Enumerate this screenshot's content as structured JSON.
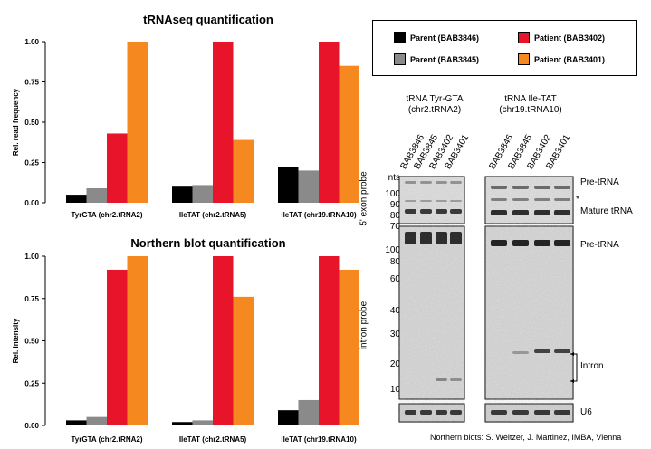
{
  "colors": {
    "parent_3846": "#000000",
    "parent_3845": "#8a8a8a",
    "patient_3402": "#e8152a",
    "patient_3401": "#f5891f"
  },
  "legend": [
    {
      "label": "Parent (BAB3846)",
      "color": "#000000"
    },
    {
      "label": "Patient (BAB3402)",
      "color": "#e8152a"
    },
    {
      "label": "Parent (BAB3845)",
      "color": "#8a8a8a"
    },
    {
      "label": "Patient (BAB3401)",
      "color": "#f5891f"
    }
  ],
  "chart_data": [
    {
      "type": "bar",
      "title": "tRNAseq quantification",
      "ylabel": "Rel. read frequency",
      "xlabel": "",
      "ylim": [
        0,
        1.0
      ],
      "yticks": [
        "0.00",
        "0.25",
        "0.50",
        "0.75",
        "1.00"
      ],
      "categories": [
        "TyrGTA (chr2.tRNA2)",
        "IleTAT (chr2.tRNA5)",
        "IleTAT (chr19.tRNA10)"
      ],
      "series": [
        {
          "name": "Parent (BAB3846)",
          "values": [
            0.05,
            0.1,
            0.22
          ]
        },
        {
          "name": "Parent (BAB3845)",
          "values": [
            0.09,
            0.11,
            0.2
          ]
        },
        {
          "name": "Patient (BAB3402)",
          "values": [
            0.43,
            1.0,
            1.0
          ]
        },
        {
          "name": "Patient (BAB3401)",
          "values": [
            1.0,
            0.39,
            0.85
          ]
        }
      ]
    },
    {
      "type": "bar",
      "title": "Northern blot quantification",
      "ylabel": "Rel. intensity",
      "xlabel": "",
      "ylim": [
        0,
        1.0
      ],
      "yticks": [
        "0.00",
        "0.25",
        "0.50",
        "0.75",
        "1.00"
      ],
      "categories": [
        "TyrGTA (chr2.tRNA2)",
        "IleTAT (chr2.tRNA5)",
        "IleTAT (chr19.tRNA10)"
      ],
      "series": [
        {
          "name": "Parent (BAB3846)",
          "values": [
            0.03,
            0.02,
            0.09
          ]
        },
        {
          "name": "Parent (BAB3845)",
          "values": [
            0.05,
            0.03,
            0.15
          ]
        },
        {
          "name": "Patient (BAB3402)",
          "values": [
            0.92,
            1.0,
            1.0
          ]
        },
        {
          "name": "Patient (BAB3401)",
          "values": [
            1.0,
            0.76,
            0.92
          ]
        }
      ]
    }
  ],
  "blot": {
    "group1_title_line1": "tRNA Tyr-GTA",
    "group1_title_line2": "(chr2.tRNA2)",
    "group2_title_line1": "tRNA Ile-TAT",
    "group2_title_line2": "(chr19.tRNA10)",
    "lanes": [
      "BAB3846",
      "BAB3845",
      "BAB3402",
      "BAB3401"
    ],
    "probe_5prime": "5' exon probe",
    "probe_intron": "intron probe",
    "markers_top": [
      "nts",
      "100",
      "90",
      "80",
      "70"
    ],
    "markers_bottom": [
      "100",
      "80",
      "60",
      "40",
      "30",
      "20",
      "10"
    ],
    "label_pre_trna_top": "Pre-tRNA",
    "label_asterisk": "*",
    "label_mature": "Mature tRNA",
    "label_pre_trna_bottom": "Pre-tRNA",
    "label_intron": "Intron",
    "label_u6": "U6"
  },
  "credit": "Northern blots: S. Weitzer, J. Martinez, IMBA, Vienna"
}
